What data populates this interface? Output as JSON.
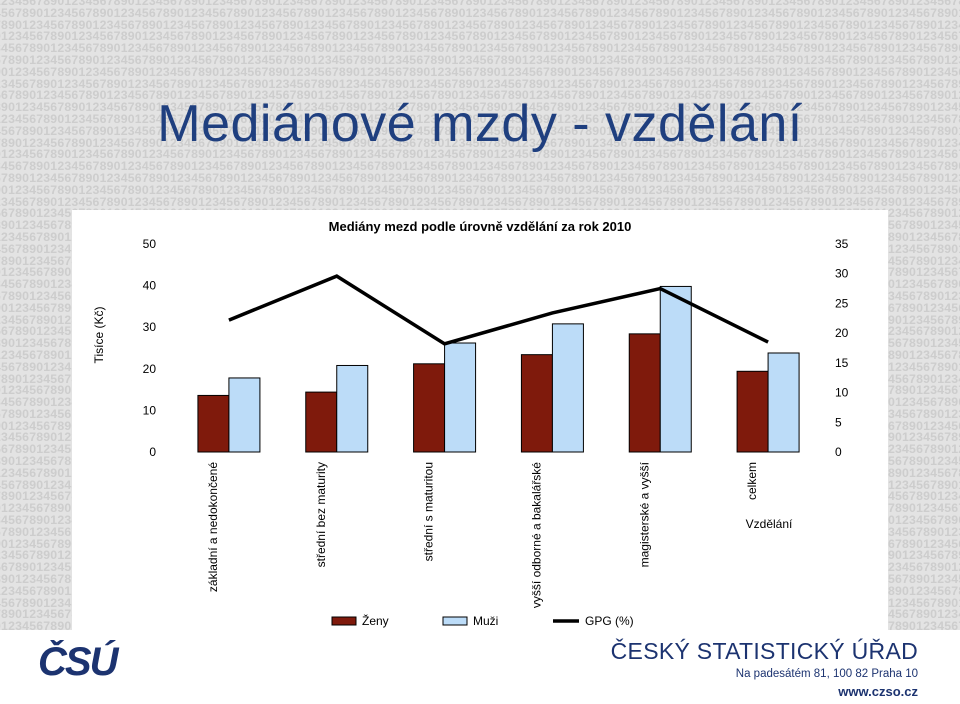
{
  "slide": {
    "title": "Mediánové mzdy - vzdělání"
  },
  "footer": {
    "org_name": "ČESKÝ STATISTICKÝ ÚŘAD",
    "address": "Na padesátém 81, 100 82  Praha 10",
    "web": "www.czso.cz",
    "logo_text": "ČSÚ"
  },
  "colors": {
    "background": "#e3e3e3",
    "title": "#1f3f7f",
    "zeny": "#7f1a0c",
    "muzi": "#bcdcf8",
    "gpg": "#000000",
    "brand": "#1c3370"
  },
  "chart_data": {
    "type": "bar",
    "title": "Mediány mezd podle úrovně vzdělání za rok 2010",
    "categories": [
      "základní a nedokončené",
      "střední bez maturity",
      "střední s maturitou",
      "vyšší odborné a bakalářské",
      "magisterské a vyšší",
      "celkem"
    ],
    "xlabel": "Vzdělání",
    "ylabel": "Tisíce (Kč)",
    "ylim": [
      0,
      50
    ],
    "y2lim": [
      0,
      35
    ],
    "yticks": [
      "0",
      "10",
      "20",
      "30",
      "40",
      "50"
    ],
    "y2ticks": [
      "0",
      "5",
      "10",
      "15",
      "20",
      "25",
      "30",
      "35"
    ],
    "series": [
      {
        "name": "Ženy",
        "type": "bar",
        "axis": "left",
        "values": [
          13.6,
          14.4,
          21.2,
          23.4,
          28.4,
          19.4
        ]
      },
      {
        "name": "Muži",
        "type": "bar",
        "axis": "left",
        "values": [
          17.8,
          20.8,
          26.2,
          30.8,
          39.8,
          23.8
        ]
      },
      {
        "name": "GPG (%)",
        "type": "line",
        "axis": "right",
        "values": [
          22.2,
          29.6,
          18.2,
          23.4,
          27.5,
          18.5
        ]
      }
    ],
    "legend": "bottom",
    "grid": false
  }
}
